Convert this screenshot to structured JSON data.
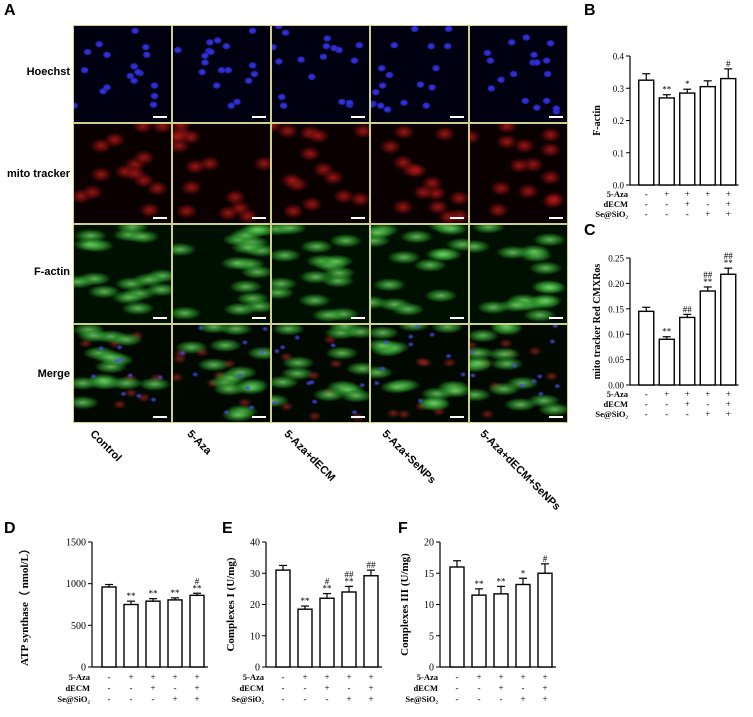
{
  "panel_letters": {
    "a": "A",
    "b": "B",
    "c": "C",
    "d": "D",
    "e": "E",
    "f": "F"
  },
  "microscopy": {
    "rows": [
      "Hoechst",
      "mito tracker",
      "F-actin",
      "Merge"
    ],
    "columns": [
      "Control",
      "5-Aza",
      "5-Aza+dECM",
      "5-Aza+SeNPs",
      "5-Aza+dECM+SeNPs"
    ]
  },
  "conditions": {
    "row_labels": [
      "5-Aza",
      "dECM",
      "Se@SiO2"
    ],
    "row_label_display": [
      "5-Aza",
      "dECM",
      "Se@SiO₂"
    ],
    "matrix": [
      [
        "-",
        "+",
        "+",
        "+",
        "+"
      ],
      [
        "-",
        "-",
        "+",
        "-",
        "+"
      ],
      [
        "-",
        "-",
        "-",
        "+",
        "+"
      ]
    ]
  },
  "colors": {
    "bar_fill": "#ffffff",
    "bar_stroke": "#000000",
    "frame": "#cfd08a"
  },
  "chart_data": [
    {
      "id": "B",
      "type": "bar",
      "ylabel": "F-actin",
      "ylim": [
        0,
        0.4
      ],
      "yticks": [
        "0.0",
        "0.1",
        "0.2",
        "0.3",
        "0.4"
      ],
      "values": [
        0.325,
        0.27,
        0.285,
        0.305,
        0.33
      ],
      "errors": [
        0.02,
        0.01,
        0.012,
        0.018,
        0.03
      ],
      "annotations": [
        "",
        "**",
        "*",
        "",
        "#"
      ]
    },
    {
      "id": "C",
      "type": "bar",
      "ylabel": "mito tracker Red CMXRos",
      "ylim": [
        0,
        0.25
      ],
      "yticks": [
        "0.00",
        "0.05",
        "0.10",
        "0.15",
        "0.20",
        "0.25"
      ],
      "values": [
        0.145,
        0.09,
        0.133,
        0.185,
        0.218
      ],
      "errors": [
        0.008,
        0.005,
        0.006,
        0.008,
        0.012
      ],
      "annotations": [
        "",
        "**",
        "##",
        "##\n**",
        "##\n**"
      ]
    },
    {
      "id": "D",
      "type": "bar",
      "ylabel": "ATP synthase（ nmol/L）",
      "ylim": [
        0,
        1500
      ],
      "yticks": [
        "0",
        "500",
        "1000",
        "1500"
      ],
      "values": [
        960,
        750,
        790,
        805,
        860
      ],
      "errors": [
        30,
        40,
        30,
        25,
        25
      ],
      "annotations": [
        "",
        "**",
        "**",
        "**",
        "#\n**"
      ]
    },
    {
      "id": "E",
      "type": "bar",
      "ylabel": "Complexes I (U/mg)",
      "ylim": [
        0,
        40
      ],
      "yticks": [
        "0",
        "10",
        "20",
        "30",
        "40"
      ],
      "values": [
        31,
        18.5,
        22,
        24,
        29.2
      ],
      "errors": [
        1.5,
        1.0,
        1.5,
        1.8,
        1.8
      ],
      "annotations": [
        "",
        "**",
        "#\n**",
        "##\n**",
        "##"
      ]
    },
    {
      "id": "F",
      "type": "bar",
      "ylabel": "Complexes III (U/mg)",
      "ylim": [
        0,
        20
      ],
      "yticks": [
        "0",
        "5",
        "10",
        "15",
        "20"
      ],
      "values": [
        16,
        11.5,
        11.7,
        13.2,
        15
      ],
      "errors": [
        1.0,
        1.0,
        1.2,
        1.0,
        1.5
      ],
      "annotations": [
        "",
        "**",
        "**",
        "*",
        "#"
      ]
    }
  ]
}
